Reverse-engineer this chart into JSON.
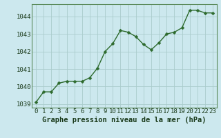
{
  "x": [
    0,
    1,
    2,
    3,
    4,
    5,
    6,
    7,
    8,
    9,
    10,
    11,
    12,
    13,
    14,
    15,
    16,
    17,
    18,
    19,
    20,
    21,
    22,
    23
  ],
  "y": [
    1039.1,
    1039.7,
    1039.7,
    1040.2,
    1040.3,
    1040.3,
    1040.3,
    1040.5,
    1041.05,
    1042.0,
    1042.45,
    1043.2,
    1043.1,
    1042.85,
    1042.4,
    1042.1,
    1042.5,
    1043.0,
    1043.1,
    1043.35,
    1044.35,
    1044.35,
    1044.2,
    1044.2
  ],
  "line_color": "#2d6a2d",
  "marker": "D",
  "marker_size": 2.5,
  "background_color": "#cce8ee",
  "grid_color": "#aacccc",
  "xlabel": "Graphe pression niveau de la mer (hPa)",
  "xlabel_fontsize": 7.5,
  "ylim": [
    1038.8,
    1044.7
  ],
  "yticks": [
    1039,
    1040,
    1041,
    1042,
    1043,
    1044
  ],
  "xticks": [
    0,
    1,
    2,
    3,
    4,
    5,
    6,
    7,
    8,
    9,
    10,
    11,
    12,
    13,
    14,
    15,
    16,
    17,
    18,
    19,
    20,
    21,
    22,
    23
  ],
  "tick_fontsize": 6.5,
  "line_width": 1.0
}
